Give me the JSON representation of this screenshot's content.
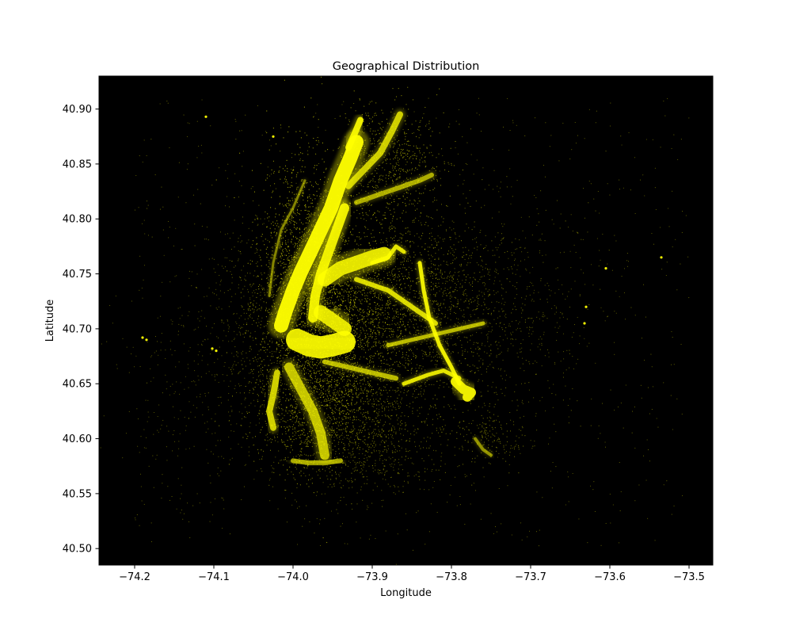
{
  "chart_data": {
    "type": "scatter",
    "title": "Geographical Distribution",
    "xlabel": "Longitude",
    "ylabel": "Latitude",
    "xlim": [
      -74.245,
      -73.47
    ],
    "ylim": [
      40.485,
      40.93
    ],
    "grid": false,
    "background_color": "#000000",
    "point_color": "#ffff00",
    "xticks": [
      -74.2,
      -74.1,
      -74.0,
      -73.9,
      -73.8,
      -73.7,
      -73.6,
      -73.5
    ],
    "xtick_labels": [
      "−74.2",
      "−74.1",
      "−74.0",
      "−73.9",
      "−73.8",
      "−73.7",
      "−73.6",
      "−73.5"
    ],
    "yticks": [
      40.5,
      40.55,
      40.6,
      40.65,
      40.7,
      40.75,
      40.8,
      40.85,
      40.9
    ],
    "ytick_labels": [
      "40.50",
      "40.55",
      "40.60",
      "40.65",
      "40.70",
      "40.75",
      "40.80",
      "40.85",
      "40.90"
    ],
    "density_polylines": [
      {
        "name": "manhattan",
        "width": 0.018,
        "alpha": 0.95,
        "points": [
          [
            -74.015,
            40.703
          ],
          [
            -74.01,
            40.715
          ],
          [
            -74.0,
            40.735
          ],
          [
            -73.99,
            40.752
          ],
          [
            -73.978,
            40.77
          ],
          [
            -73.965,
            40.79
          ],
          [
            -73.952,
            40.81
          ],
          [
            -73.94,
            40.835
          ],
          [
            -73.928,
            40.855
          ],
          [
            -73.92,
            40.87
          ]
        ]
      },
      {
        "name": "manhattan-east",
        "width": 0.012,
        "alpha": 0.9,
        "points": [
          [
            -73.975,
            40.71
          ],
          [
            -73.972,
            40.73
          ],
          [
            -73.965,
            40.75
          ],
          [
            -73.955,
            40.77
          ],
          [
            -73.945,
            40.79
          ],
          [
            -73.935,
            40.81
          ]
        ]
      },
      {
        "name": "manhattan-tip",
        "width": 0.008,
        "alpha": 0.9,
        "points": [
          [
            -73.93,
            40.865
          ],
          [
            -73.922,
            40.878
          ],
          [
            -73.915,
            40.89
          ]
        ]
      },
      {
        "name": "bronx-spine",
        "width": 0.008,
        "alpha": 0.75,
        "points": [
          [
            -73.93,
            40.83
          ],
          [
            -73.91,
            40.845
          ],
          [
            -73.89,
            40.86
          ],
          [
            -73.875,
            40.88
          ],
          [
            -73.865,
            40.895
          ]
        ]
      },
      {
        "name": "bronx-east",
        "width": 0.006,
        "alpha": 0.6,
        "points": [
          [
            -73.92,
            40.815
          ],
          [
            -73.9,
            40.82
          ],
          [
            -73.88,
            40.825
          ],
          [
            -73.86,
            40.83
          ],
          [
            -73.84,
            40.835
          ],
          [
            -73.825,
            40.84
          ]
        ]
      },
      {
        "name": "queens-main",
        "width": 0.018,
        "alpha": 0.85,
        "points": [
          [
            -73.96,
            40.745
          ],
          [
            -73.94,
            40.755
          ],
          [
            -73.92,
            40.76
          ],
          [
            -73.9,
            40.765
          ],
          [
            -73.885,
            40.768
          ]
        ]
      },
      {
        "name": "queens-blvd",
        "width": 0.006,
        "alpha": 0.8,
        "points": [
          [
            -73.92,
            40.745
          ],
          [
            -73.9,
            40.74
          ],
          [
            -73.88,
            40.735
          ],
          [
            -73.86,
            40.725
          ],
          [
            -73.84,
            40.715
          ],
          [
            -73.82,
            40.705
          ]
        ]
      },
      {
        "name": "expressway-lga",
        "width": 0.005,
        "alpha": 0.85,
        "points": [
          [
            -73.9,
            40.76
          ],
          [
            -73.88,
            40.765
          ],
          [
            -73.87,
            40.775
          ],
          [
            -73.86,
            40.77
          ]
        ]
      },
      {
        "name": "van-wyck",
        "width": 0.005,
        "alpha": 0.9,
        "points": [
          [
            -73.84,
            40.76
          ],
          [
            -73.835,
            40.735
          ],
          [
            -73.828,
            40.71
          ],
          [
            -73.815,
            40.685
          ],
          [
            -73.8,
            40.665
          ],
          [
            -73.79,
            40.65
          ]
        ]
      },
      {
        "name": "belt",
        "width": 0.005,
        "alpha": 0.85,
        "points": [
          [
            -73.86,
            40.65
          ],
          [
            -73.83,
            40.658
          ],
          [
            -73.81,
            40.662
          ],
          [
            -73.79,
            40.655
          ]
        ]
      },
      {
        "name": "jfk",
        "width": 0.012,
        "alpha": 0.9,
        "points": [
          [
            -73.795,
            40.652
          ],
          [
            -73.785,
            40.645
          ],
          [
            -73.775,
            40.642
          ],
          [
            -73.78,
            40.638
          ]
        ]
      },
      {
        "name": "brooklyn-core",
        "width": 0.028,
        "alpha": 0.9,
        "points": [
          [
            -73.995,
            40.69
          ],
          [
            -73.98,
            40.685
          ],
          [
            -73.965,
            40.683
          ],
          [
            -73.95,
            40.685
          ],
          [
            -73.935,
            40.688
          ]
        ]
      },
      {
        "name": "brooklyn-north",
        "width": 0.018,
        "alpha": 0.85,
        "points": [
          [
            -73.965,
            40.715
          ],
          [
            -73.955,
            40.71
          ],
          [
            -73.945,
            40.705
          ],
          [
            -73.935,
            40.7
          ]
        ]
      },
      {
        "name": "brooklyn-south",
        "width": 0.012,
        "alpha": 0.7,
        "points": [
          [
            -74.005,
            40.665
          ],
          [
            -73.99,
            40.645
          ],
          [
            -73.975,
            40.625
          ],
          [
            -73.965,
            40.605
          ],
          [
            -73.96,
            40.585
          ]
        ]
      },
      {
        "name": "bay-ridge",
        "width": 0.008,
        "alpha": 0.75,
        "points": [
          [
            -74.02,
            40.66
          ],
          [
            -74.025,
            40.64
          ],
          [
            -74.03,
            40.625
          ],
          [
            -74.025,
            40.61
          ]
        ]
      },
      {
        "name": "eastern-pkwy",
        "width": 0.006,
        "alpha": 0.65,
        "points": [
          [
            -73.96,
            40.67
          ],
          [
            -73.93,
            40.665
          ],
          [
            -73.9,
            40.66
          ],
          [
            -73.87,
            40.655
          ]
        ]
      },
      {
        "name": "jamaica-ave",
        "width": 0.005,
        "alpha": 0.65,
        "points": [
          [
            -73.88,
            40.685
          ],
          [
            -73.85,
            40.69
          ],
          [
            -73.82,
            40.695
          ],
          [
            -73.79,
            40.7
          ],
          [
            -73.76,
            40.705
          ]
        ]
      },
      {
        "name": "coney",
        "width": 0.006,
        "alpha": 0.6,
        "points": [
          [
            -74.0,
            40.58
          ],
          [
            -73.98,
            40.578
          ],
          [
            -73.96,
            40.578
          ],
          [
            -73.94,
            40.58
          ]
        ]
      },
      {
        "name": "rockaway",
        "width": 0.004,
        "alpha": 0.5,
        "points": [
          [
            -73.77,
            40.6
          ],
          [
            -73.76,
            40.59
          ],
          [
            -73.75,
            40.585
          ]
        ]
      },
      {
        "name": "hudson-west",
        "width": 0.003,
        "alpha": 0.45,
        "points": [
          [
            -74.03,
            40.73
          ],
          [
            -74.025,
            40.76
          ],
          [
            -74.015,
            40.79
          ],
          [
            -74.0,
            40.81
          ],
          [
            -73.985,
            40.835
          ]
        ]
      }
    ],
    "scatter_clusters": [
      {
        "cx": -73.985,
        "cy": 40.755,
        "sx": 0.028,
        "sy": 0.055,
        "n": 1400,
        "alpha": 0.6
      },
      {
        "cx": -73.945,
        "cy": 40.69,
        "sx": 0.045,
        "sy": 0.045,
        "n": 1500,
        "alpha": 0.55
      },
      {
        "cx": -73.97,
        "cy": 40.625,
        "sx": 0.04,
        "sy": 0.03,
        "n": 900,
        "alpha": 0.5
      },
      {
        "cx": -73.9,
        "cy": 40.73,
        "sx": 0.05,
        "sy": 0.035,
        "n": 1000,
        "alpha": 0.5
      },
      {
        "cx": -73.88,
        "cy": 40.85,
        "sx": 0.035,
        "sy": 0.03,
        "n": 700,
        "alpha": 0.5
      },
      {
        "cx": -73.82,
        "cy": 40.72,
        "sx": 0.05,
        "sy": 0.045,
        "n": 800,
        "alpha": 0.4
      },
      {
        "cx": -73.78,
        "cy": 40.7,
        "sx": 0.06,
        "sy": 0.06,
        "n": 450,
        "alpha": 0.35
      },
      {
        "cx": -73.9,
        "cy": 40.62,
        "sx": 0.05,
        "sy": 0.03,
        "n": 500,
        "alpha": 0.4
      },
      {
        "cx": -74.04,
        "cy": 40.72,
        "sx": 0.03,
        "sy": 0.05,
        "n": 350,
        "alpha": 0.35
      },
      {
        "cx": -74.1,
        "cy": 40.66,
        "sx": 0.06,
        "sy": 0.05,
        "n": 350,
        "alpha": 0.3
      },
      {
        "cx": -73.92,
        "cy": 40.58,
        "sx": 0.05,
        "sy": 0.02,
        "n": 300,
        "alpha": 0.35
      },
      {
        "cx": -73.75,
        "cy": 40.6,
        "sx": 0.02,
        "sy": 0.012,
        "n": 150,
        "alpha": 0.4
      },
      {
        "cx": -73.7,
        "cy": 40.72,
        "sx": 0.05,
        "sy": 0.04,
        "n": 200,
        "alpha": 0.3
      }
    ],
    "background_points": {
      "n": 900,
      "alpha": 0.4
    },
    "highlight_points": [
      [
        -74.19,
        40.692
      ],
      [
        -74.185,
        40.69
      ],
      [
        -74.102,
        40.682
      ],
      [
        -74.097,
        40.68
      ],
      [
        -73.63,
        40.72
      ],
      [
        -73.632,
        40.705
      ],
      [
        -73.535,
        40.765
      ],
      [
        -73.605,
        40.755
      ],
      [
        -74.025,
        40.875
      ],
      [
        -74.11,
        40.893
      ]
    ]
  }
}
